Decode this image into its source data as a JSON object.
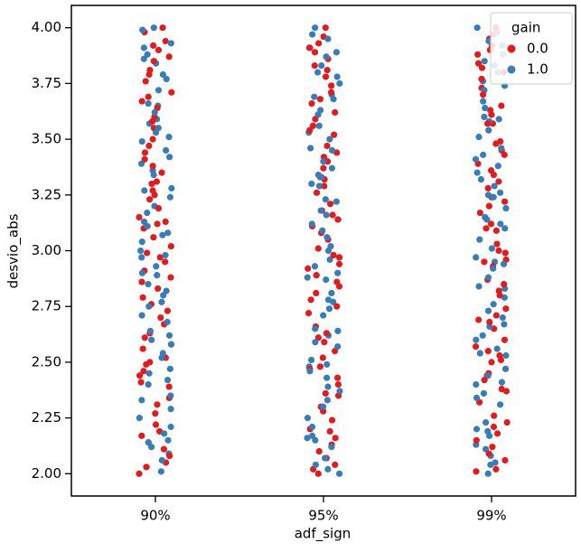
{
  "chart_data": {
    "type": "strip",
    "xlabel": "adf_sign",
    "ylabel": "desvio_abs",
    "categories": [
      "90%",
      "95%",
      "99%"
    ],
    "legend_title": "gain",
    "legend": "upper right",
    "ylim": [
      1.9,
      4.1
    ],
    "yticks": [
      {
        "value": 2,
        "label": "2.00"
      },
      {
        "value": 2.25,
        "label": "2.25"
      },
      {
        "value": 2.5,
        "label": "2.50"
      },
      {
        "value": 2.75,
        "label": "2.75"
      },
      {
        "value": 3,
        "label": "3.00"
      },
      {
        "value": 3.25,
        "label": "3.25"
      },
      {
        "value": 3.5,
        "label": "3.50"
      },
      {
        "value": 3.75,
        "label": "3.75"
      },
      {
        "value": 4,
        "label": "4.00"
      }
    ],
    "series": [
      {
        "name": "0.0",
        "color": "#e41a1c",
        "values": [
          [
            2.0,
            3.87,
            2.41,
            3.12,
            2.76,
            3.55,
            2.19,
            3.98,
            2.63,
            3.31,
            2.88,
            2.05,
            3.44,
            3.71,
            2.52,
            3.06,
            2.34,
            3.92,
            2.97,
            3.23,
            2.11,
            3.64,
            2.7,
            3.38,
            2.46,
            3.81,
            2.27,
            3.15,
            2.91,
            3.5,
            2.58,
            4.0,
            2.14,
            3.27,
            3.76,
            2.83,
            3.02,
            2.39,
            3.6,
            2.67,
            3.19,
            2.08,
            3.85,
            2.49,
            3.35,
            2.95,
            3.69,
            2.22,
            3.1,
            2.79,
            3.47,
            2.56,
            3.94,
            2.31,
            3.58,
            2.73,
            3.25,
            2.03,
            3.79,
            2.61,
            3.41,
            2.86,
            3.13,
            2.44,
            3.67,
            2.17,
            3.9,
            2.99,
            3.3,
            2.5
          ],
          [
            2.02,
            3.74,
            2.36,
            3.18,
            2.81,
            3.52,
            2.13,
            3.96,
            2.59,
            3.29,
            2.92,
            2.07,
            3.47,
            3.68,
            2.55,
            3.01,
            2.3,
            3.89,
            2.94,
            3.21,
            2.16,
            3.62,
            2.72,
            3.4,
            2.43,
            3.83,
            2.24,
            3.11,
            2.86,
            3.56,
            2.61,
            4.0,
            2.1,
            3.33,
            3.78,
            2.78,
            3.05,
            2.35,
            3.59,
            2.66,
            3.16,
            2.04,
            3.86,
            2.47,
            3.37,
            2.98,
            3.71,
            2.2,
            3.08,
            2.84,
            3.44,
            2.52,
            3.93,
            2.28,
            3.54,
            2.75,
            3.26,
            2.0,
            3.81,
            2.63,
            3.42,
            2.89,
            3.14,
            2.4,
            3.66,
            2.19,
            3.91,
            2.97,
            3.32,
            2.48
          ],
          [
            2.01,
            3.88,
            2.44,
            3.1,
            2.74,
            3.57,
            2.21,
            3.97,
            2.65,
            3.34,
            2.87,
            2.06,
            3.45,
            3.73,
            2.53,
            3.03,
            2.37,
            3.9,
            2.99,
            3.24,
            2.12,
            3.61,
            2.69,
            3.39,
            2.45,
            3.8,
            2.26,
            3.17,
            2.93,
            3.49,
            2.57,
            4.0,
            2.15,
            3.28,
            3.77,
            2.82,
            3.0,
            2.38,
            3.63,
            2.68,
            3.2,
            2.09,
            3.84,
            2.5,
            3.36,
            2.96,
            3.7,
            2.23,
            3.09,
            2.8,
            3.48,
            2.55,
            3.95,
            2.32,
            3.57,
            2.71,
            3.22,
            2.02,
            3.82,
            2.6,
            3.43,
            2.85,
            3.12,
            2.42,
            3.65,
            2.18,
            3.92,
            2.95,
            3.31,
            2.51
          ]
        ]
      },
      {
        "name": "1.0",
        "color": "#377eb8",
        "values": [
          [
            2.03,
            3.79,
            2.47,
            3.08,
            2.71,
            3.51,
            2.25,
            3.99,
            2.6,
            3.36,
            2.85,
            2.09,
            3.42,
            3.65,
            2.54,
            3.0,
            2.29,
            3.86,
            2.93,
            3.2,
            2.15,
            3.59,
            2.77,
            3.34,
            2.42,
            3.84,
            2.21,
            3.13,
            2.89,
            3.53,
            2.62,
            4.0,
            2.12,
            3.24,
            3.72,
            2.8,
            3.04,
            2.33,
            3.57,
            2.64,
            3.17,
            2.06,
            3.88,
            2.45,
            3.39,
            2.97,
            3.66,
            2.18,
            3.07,
            2.82,
            3.49,
            2.58,
            3.91,
            2.35,
            3.55,
            2.75,
            3.27,
            2.01,
            3.77,
            2.68,
            3.45,
            2.9,
            3.11,
            2.4,
            3.62,
            2.14,
            3.93,
            2.98,
            3.28,
            2.52
          ],
          [
            2.0,
            3.83,
            2.39,
            3.14,
            2.78,
            3.5,
            2.17,
            3.95,
            2.62,
            3.3,
            2.9,
            2.04,
            3.46,
            3.7,
            2.51,
            3.02,
            2.33,
            3.91,
            2.96,
            3.22,
            2.12,
            3.63,
            2.71,
            3.37,
            2.48,
            3.8,
            2.25,
            3.16,
            2.88,
            3.53,
            2.59,
            4.0,
            2.15,
            3.29,
            3.75,
            2.81,
            3.06,
            2.37,
            3.61,
            2.65,
            3.18,
            2.07,
            3.87,
            2.46,
            3.34,
            2.93,
            3.68,
            2.21,
            3.09,
            2.77,
            3.45,
            2.57,
            3.97,
            2.3,
            3.56,
            2.74,
            3.23,
            2.02,
            3.78,
            2.64,
            3.4,
            2.87,
            3.12,
            2.43,
            3.69,
            2.16,
            3.89,
            3.0,
            3.33,
            2.49
          ],
          [
            2.04,
            3.76,
            2.4,
            3.15,
            2.73,
            3.54,
            2.2,
            3.98,
            2.66,
            3.32,
            2.84,
            2.08,
            3.43,
            3.72,
            2.56,
            3.05,
            2.31,
            3.88,
            2.95,
            3.25,
            2.13,
            3.6,
            2.7,
            3.35,
            2.47,
            3.85,
            2.23,
            3.12,
            2.92,
            3.51,
            2.6,
            4.0,
            2.11,
            3.26,
            3.74,
            2.79,
            3.01,
            2.36,
            3.58,
            2.67,
            3.19,
            2.05,
            3.83,
            2.44,
            3.38,
            2.94,
            3.67,
            2.19,
            3.1,
            2.83,
            3.46,
            2.54,
            3.92,
            2.34,
            3.59,
            2.76,
            3.24,
            2.0,
            3.8,
            2.62,
            3.41,
            2.88,
            3.14,
            2.41,
            3.64,
            2.17,
            3.94,
            2.97,
            3.29,
            2.53
          ]
        ]
      }
    ]
  }
}
